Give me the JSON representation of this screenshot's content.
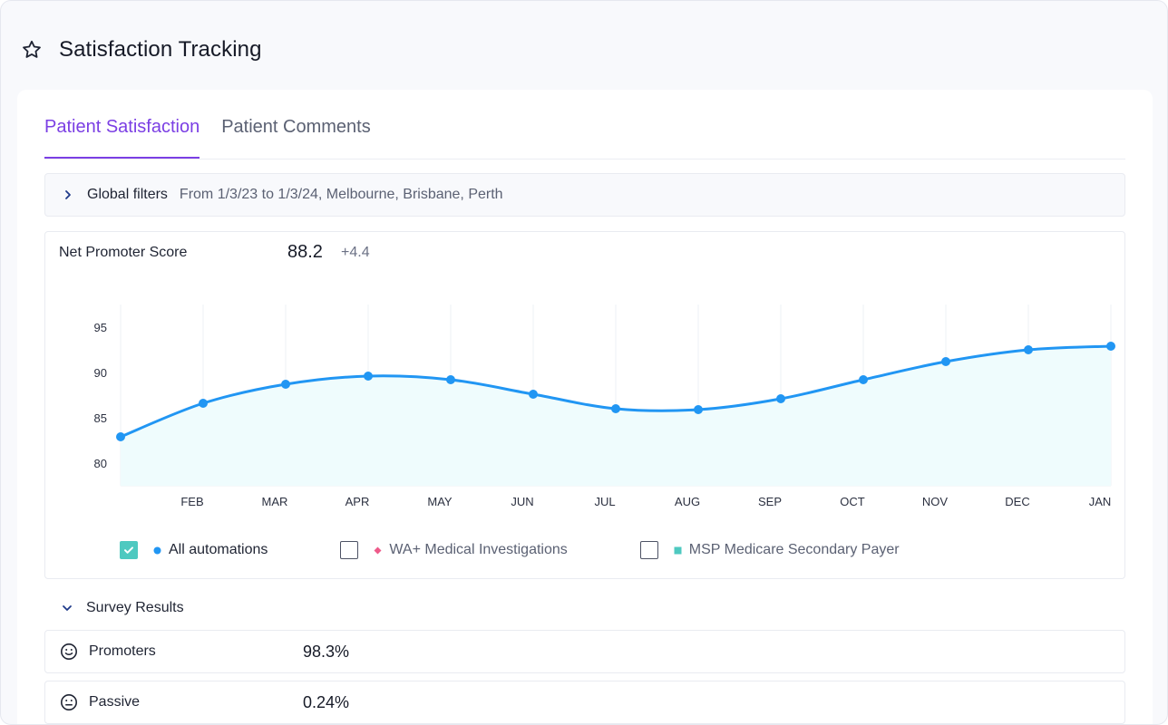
{
  "page": {
    "title": "Satisfaction Tracking",
    "title_icon": "star-outline-icon"
  },
  "tabs": [
    {
      "label": "Patient Satisfaction",
      "active": true
    },
    {
      "label": "Patient Comments",
      "active": false
    }
  ],
  "global_filters": {
    "label": "Global filters",
    "value": "From 1/3/23 to 1/3/24, Melbourne, Brisbane, Perth",
    "icon": "chevron-right-icon"
  },
  "nps": {
    "label": "Net Promoter Score",
    "value": "88.2",
    "delta": "+4.4"
  },
  "legend": [
    {
      "label": "All automations",
      "checked": true,
      "marker": "circle",
      "color": "#2196f3"
    },
    {
      "label": "WA+ Medical Investigations",
      "checked": false,
      "marker": "diamond",
      "color": "#ee5a8a"
    },
    {
      "label": "MSP Medicare Secondary Payer",
      "checked": false,
      "marker": "square",
      "color": "#4ec9c0"
    }
  ],
  "survey": {
    "label": "Survey Results",
    "icon": "chevron-down-icon",
    "rows": [
      {
        "name": "Promoters",
        "value": "98.3%",
        "icon": "smile-face-icon"
      },
      {
        "name": "Passive",
        "value": "0.24%",
        "icon": "neutral-face-icon"
      }
    ]
  },
  "colors": {
    "accent": "#7b3fe4",
    "line": "#2196f3",
    "area": "#effcfd",
    "checkbox": "#4ec9c0"
  },
  "chart_data": {
    "type": "area",
    "x": [
      "",
      "FEB",
      "MAR",
      "APR",
      "MAY",
      "JUN",
      "JUL",
      "AUG",
      "SEP",
      "OCT",
      "NOV",
      "DEC",
      "JAN"
    ],
    "series": [
      {
        "name": "All automations",
        "values": [
          82.9,
          86.6,
          88.7,
          89.6,
          89.2,
          87.6,
          86.0,
          85.9,
          87.1,
          89.2,
          91.2,
          92.5,
          92.9
        ]
      }
    ],
    "yticks": [
      80,
      85,
      90,
      95
    ],
    "ylim": [
      77.5,
      97.5
    ],
    "grid": "vertical"
  }
}
